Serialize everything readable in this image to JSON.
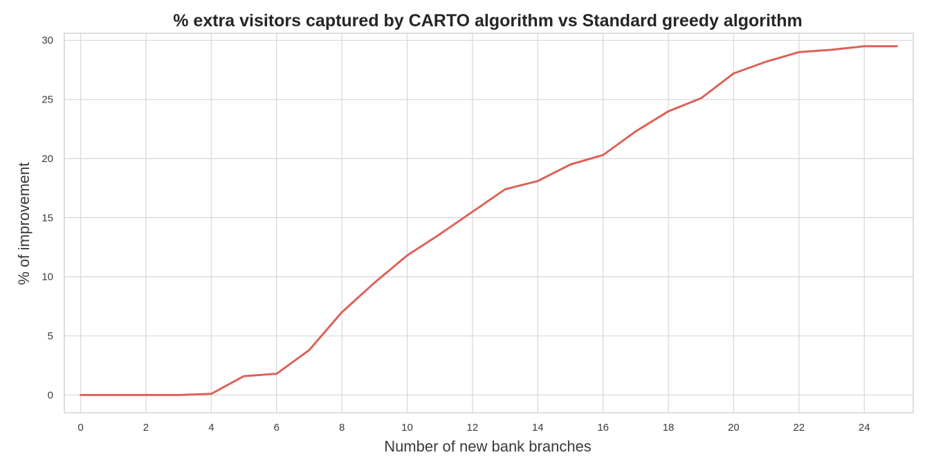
{
  "chart_data": {
    "type": "line",
    "title": "% extra visitors captured by CARTO algorithm vs Standard greedy algorithm",
    "xlabel": "Number of new bank branches",
    "ylabel": "% of improvement",
    "xlim": [
      -0.5,
      25.5
    ],
    "ylim": [
      -1.5,
      30.6
    ],
    "xticks": [
      0,
      2,
      4,
      6,
      8,
      10,
      12,
      14,
      16,
      18,
      20,
      22,
      24
    ],
    "yticks": [
      0,
      5,
      10,
      15,
      20,
      25,
      30
    ],
    "grid": true,
    "series": [
      {
        "color": "#dd6157",
        "x": [
          0,
          1,
          2,
          3,
          4,
          5,
          6,
          7,
          8,
          9,
          10,
          11,
          12,
          13,
          14,
          15,
          16,
          17,
          18,
          19,
          20,
          21,
          22,
          23,
          24,
          25
        ],
        "y": [
          0,
          0,
          0,
          0,
          0.1,
          1.6,
          1.8,
          3.8,
          7.0,
          9.5,
          11.8,
          13.6,
          15.5,
          17.4,
          18.1,
          19.5,
          20.3,
          22.3,
          24.0,
          25.1,
          27.2,
          28.2,
          29.0,
          29.2,
          29.5,
          29.5
        ]
      }
    ]
  }
}
